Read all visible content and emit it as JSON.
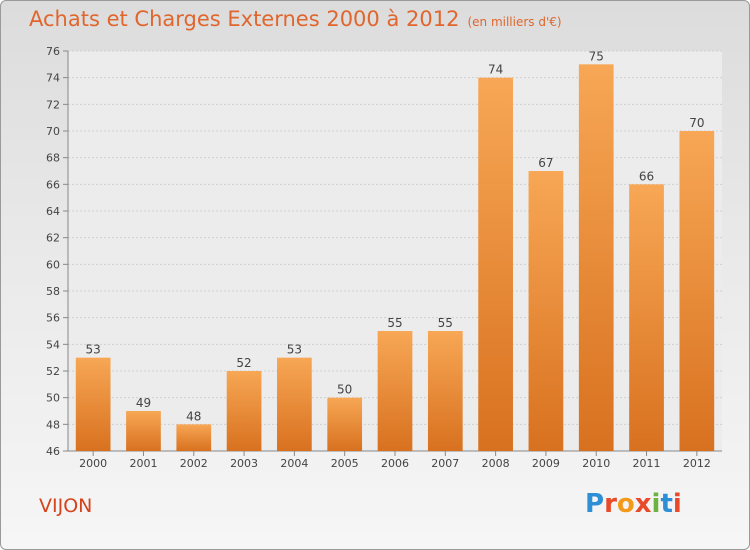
{
  "header": {
    "title": "Achats et Charges Externes 2000 à 2012",
    "subtitle": "(en milliers d'€)"
  },
  "footer": {
    "commune": "VIJON",
    "logo": "Proxiti"
  },
  "colors": {
    "title": "#e0662e",
    "bar_light": "#f7a755",
    "bar_dark": "#d8711f",
    "commune": "#d5431c",
    "logo": [
      "#2f8fd6",
      "#e84a2a",
      "#f39a1b",
      "#e84a2a",
      "#6db33f",
      "#2f8fd6",
      "#e84a2a"
    ]
  },
  "chart_data": {
    "type": "bar",
    "categories": [
      "2000",
      "2001",
      "2002",
      "2003",
      "2004",
      "2005",
      "2006",
      "2007",
      "2008",
      "2009",
      "2010",
      "2011",
      "2012"
    ],
    "values": [
      53,
      49,
      48,
      52,
      53,
      50,
      55,
      55,
      74,
      67,
      75,
      66,
      70
    ],
    "title": "Achats et Charges Externes 2000 à 2012",
    "subtitle": "(en milliers d'€)",
    "ylim": [
      46,
      76
    ],
    "yticks": [
      46,
      48,
      50,
      52,
      54,
      56,
      58,
      60,
      62,
      64,
      66,
      68,
      70,
      72,
      74,
      76
    ],
    "grid": true,
    "data_labels": true
  }
}
